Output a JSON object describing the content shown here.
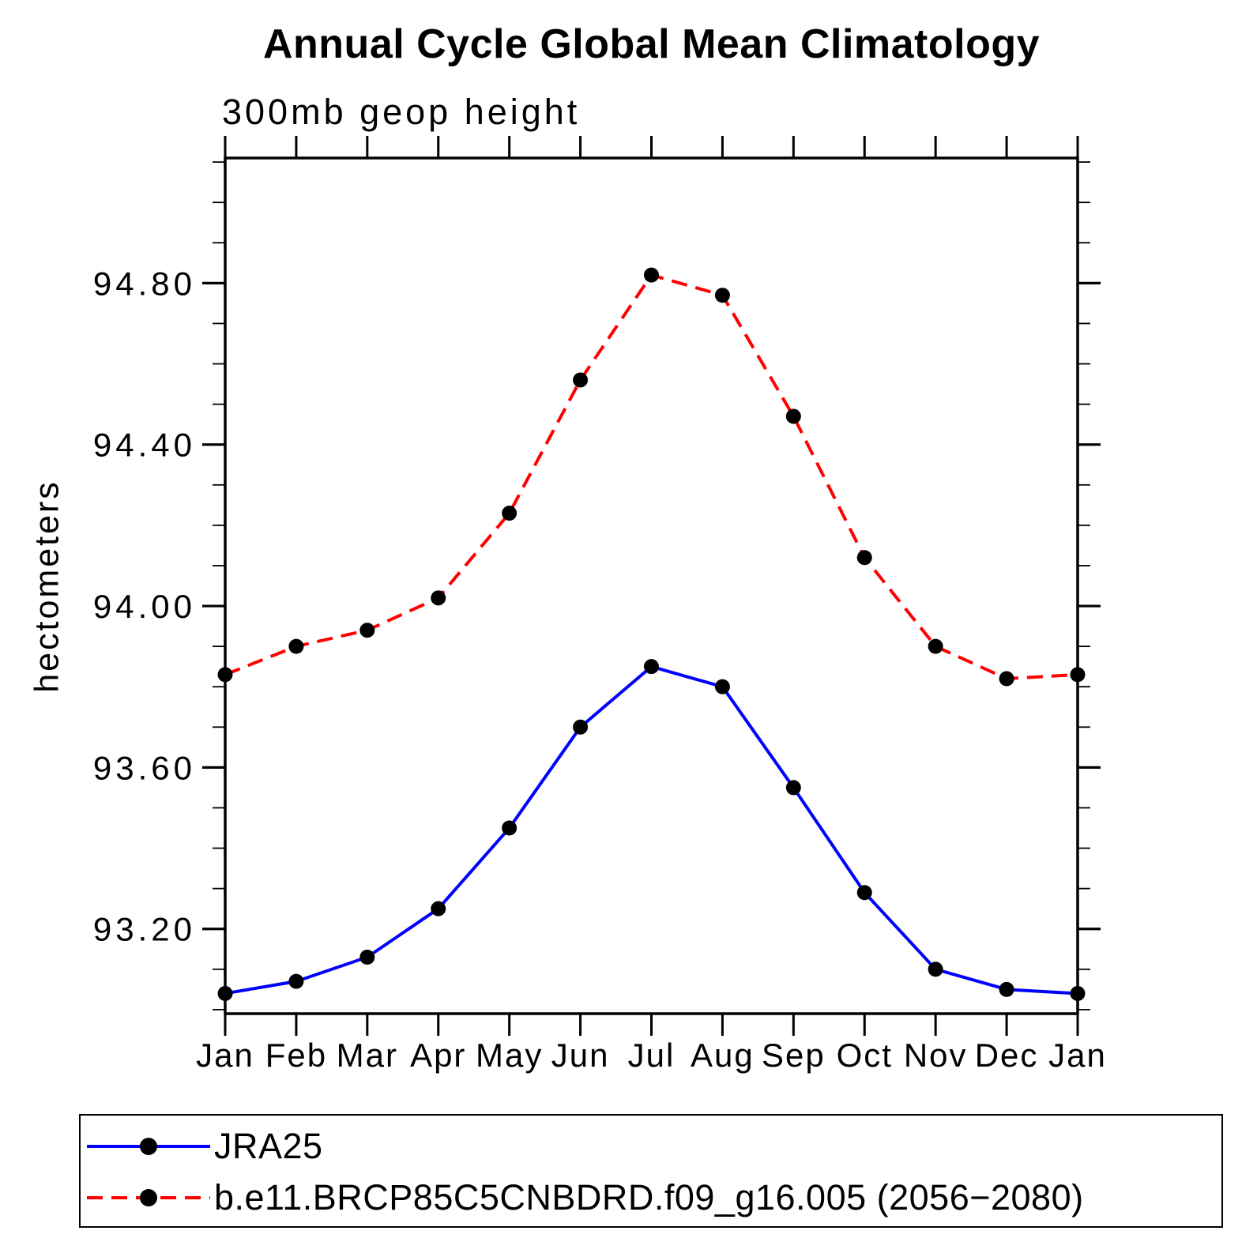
{
  "chart_data": {
    "type": "line",
    "title": "Annual Cycle Global Mean Climatology",
    "subtitle": "300mb geop height",
    "ylabel": "hectometers",
    "xlabel": "",
    "categories": [
      "Jan",
      "Feb",
      "Mar",
      "Apr",
      "May",
      "Jun",
      "Jul",
      "Aug",
      "Sep",
      "Oct",
      "Nov",
      "Dec",
      "Jan"
    ],
    "ytick_values": [
      93.2,
      93.6,
      94.0,
      94.4,
      94.8
    ],
    "ytick_labels": [
      "93.20",
      "93.60",
      "94.00",
      "94.40",
      "94.80"
    ],
    "y_minor_interval": 0.1,
    "ylim": [
      92.99,
      95.11
    ],
    "grid": false,
    "legend_position": "bottom-left-box",
    "axis_color": "#000000",
    "marker_color": "#000000",
    "series": [
      {
        "name": "JRA25",
        "color": "#0000ff",
        "line_style": "solid",
        "marker": "filled-circle",
        "values": [
          93.04,
          93.07,
          93.13,
          93.25,
          93.45,
          93.7,
          93.85,
          93.8,
          93.55,
          93.29,
          93.1,
          93.05,
          93.04
        ]
      },
      {
        "name": "b.e11.BRCP85C5CNBDRD.f09_g16.005 (2056−2080)",
        "color": "#ff0000",
        "line_style": "dashed",
        "marker": "filled-circle",
        "values": [
          93.83,
          93.9,
          93.94,
          94.02,
          94.23,
          94.56,
          94.82,
          94.77,
          94.47,
          94.12,
          93.9,
          93.82,
          93.83
        ]
      }
    ]
  }
}
